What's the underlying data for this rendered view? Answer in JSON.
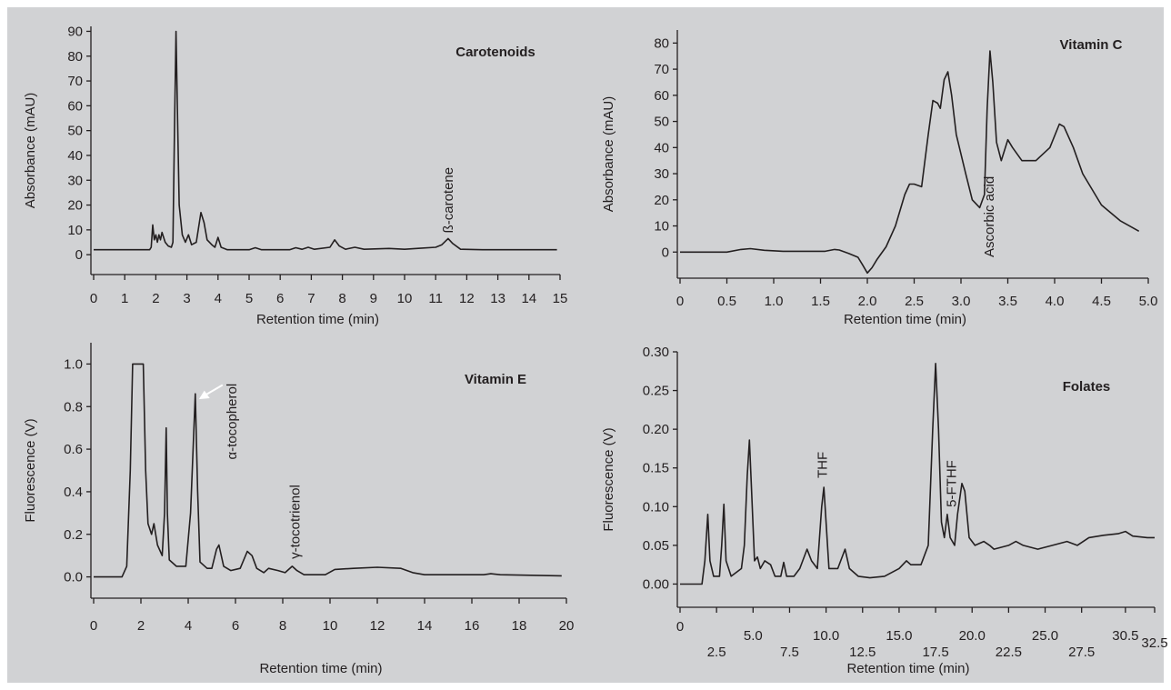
{
  "colors": {
    "background": "#d1d2d4",
    "ink": "#231f20",
    "arrow": "#ffffff"
  },
  "chart_data": [
    {
      "type": "line",
      "title": "Carotenoids",
      "xlabel": "Retention time (min)",
      "ylabel": "Absorbance (mAU)",
      "xlim": [
        0,
        15
      ],
      "ylim": [
        -8,
        92
      ],
      "x_ticks": [
        "0",
        "1",
        "2",
        "3",
        "4",
        "5",
        "6",
        "7",
        "8",
        "9",
        "10",
        "11",
        "12",
        "13",
        "14",
        "15"
      ],
      "y_ticks": [
        "0",
        "10",
        "20",
        "30",
        "40",
        "50",
        "60",
        "70",
        "80",
        "90"
      ],
      "annotations": [
        {
          "text": "ß-carotene",
          "x": 11.4,
          "y": 6.5,
          "rotated": true
        }
      ],
      "series": [
        {
          "points": [
            [
              0,
              2
            ],
            [
              1.8,
              2
            ],
            [
              1.85,
              3
            ],
            [
              1.9,
              12
            ],
            [
              1.95,
              6
            ],
            [
              2.0,
              8
            ],
            [
              2.05,
              5
            ],
            [
              2.1,
              8
            ],
            [
              2.15,
              6
            ],
            [
              2.2,
              9
            ],
            [
              2.3,
              5
            ],
            [
              2.4,
              3.5
            ],
            [
              2.5,
              3
            ],
            [
              2.55,
              5
            ],
            [
              2.6,
              50
            ],
            [
              2.65,
              90
            ],
            [
              2.7,
              55
            ],
            [
              2.75,
              20
            ],
            [
              2.85,
              8
            ],
            [
              2.95,
              5
            ],
            [
              3.05,
              8
            ],
            [
              3.15,
              4
            ],
            [
              3.3,
              5
            ],
            [
              3.45,
              17
            ],
            [
              3.55,
              13
            ],
            [
              3.65,
              6
            ],
            [
              3.8,
              4
            ],
            [
              3.9,
              3
            ],
            [
              4.0,
              7
            ],
            [
              4.1,
              3
            ],
            [
              4.3,
              2
            ],
            [
              5.0,
              2
            ],
            [
              5.2,
              2.8
            ],
            [
              5.4,
              2
            ],
            [
              6.3,
              2
            ],
            [
              6.5,
              2.8
            ],
            [
              6.7,
              2.2
            ],
            [
              6.9,
              3
            ],
            [
              7.1,
              2.2
            ],
            [
              7.6,
              3
            ],
            [
              7.75,
              6
            ],
            [
              7.9,
              3.5
            ],
            [
              8.1,
              2.2
            ],
            [
              8.4,
              3
            ],
            [
              8.7,
              2.2
            ],
            [
              9.5,
              2.5
            ],
            [
              10.0,
              2.2
            ],
            [
              10.5,
              2.6
            ],
            [
              11.0,
              3
            ],
            [
              11.2,
              4
            ],
            [
              11.4,
              6.5
            ],
            [
              11.55,
              4.5
            ],
            [
              11.8,
              2.2
            ],
            [
              12.5,
              2
            ],
            [
              14.9,
              2
            ]
          ]
        }
      ]
    },
    {
      "type": "line",
      "title": "Vitamin C",
      "xlabel": "Retention time (min)",
      "ylabel": "Absorbance (mAU)",
      "xlim": [
        0,
        5
      ],
      "ylim": [
        -10,
        85
      ],
      "x_ticks": [
        "0",
        "0.5",
        "1.0",
        "1.5",
        "2.0",
        "2.5",
        "3.0",
        "3.5",
        "4.0",
        "4.5",
        "5.0"
      ],
      "y_ticks": [
        "0",
        "10",
        "20",
        "30",
        "40",
        "50",
        "60",
        "70",
        "80"
      ],
      "annotations": [
        {
          "text": "Ascorbic acid",
          "x": 3.3,
          "y": 78,
          "rotated": true
        }
      ],
      "series": [
        {
          "points": [
            [
              0,
              0
            ],
            [
              0.5,
              0
            ],
            [
              0.65,
              1
            ],
            [
              0.75,
              1.3
            ],
            [
              0.9,
              0.7
            ],
            [
              1.1,
              0.3
            ],
            [
              1.55,
              0.3
            ],
            [
              1.65,
              1
            ],
            [
              1.7,
              0.8
            ],
            [
              1.8,
              -0.5
            ],
            [
              1.9,
              -2
            ],
            [
              1.95,
              -5
            ],
            [
              2.0,
              -8
            ],
            [
              2.05,
              -6
            ],
            [
              2.1,
              -3
            ],
            [
              2.2,
              2
            ],
            [
              2.3,
              10
            ],
            [
              2.4,
              22
            ],
            [
              2.45,
              26
            ],
            [
              2.5,
              26
            ],
            [
              2.58,
              25
            ],
            [
              2.65,
              45
            ],
            [
              2.7,
              58
            ],
            [
              2.75,
              57
            ],
            [
              2.78,
              55
            ],
            [
              2.82,
              66
            ],
            [
              2.86,
              69
            ],
            [
              2.9,
              60
            ],
            [
              2.95,
              45
            ],
            [
              3.05,
              30
            ],
            [
              3.12,
              20
            ],
            [
              3.2,
              17
            ],
            [
              3.25,
              22
            ],
            [
              3.28,
              55
            ],
            [
              3.31,
              77
            ],
            [
              3.34,
              65
            ],
            [
              3.38,
              42
            ],
            [
              3.43,
              35
            ],
            [
              3.5,
              43
            ],
            [
              3.55,
              40
            ],
            [
              3.65,
              35
            ],
            [
              3.8,
              35
            ],
            [
              3.95,
              40
            ],
            [
              4.05,
              49
            ],
            [
              4.1,
              48
            ],
            [
              4.2,
              40
            ],
            [
              4.3,
              30
            ],
            [
              4.5,
              18
            ],
            [
              4.7,
              12
            ],
            [
              4.9,
              8
            ]
          ]
        }
      ]
    },
    {
      "type": "line",
      "title": "Vitamin E",
      "xlabel": "Retention time (min)",
      "ylabel": "Fluorescence (V)",
      "xlim": [
        0,
        20
      ],
      "ylim": [
        -0.1,
        1.1
      ],
      "x_ticks": [
        "0",
        "2",
        "4",
        "6",
        "8",
        "10",
        "12",
        "14",
        "16",
        "18",
        "20"
      ],
      "y_ticks": [
        "0.0",
        "0.2",
        "0.4",
        "0.6",
        "0.8",
        "1.0"
      ],
      "annotations": [
        {
          "text": "α-tocopherol",
          "x": 4.3,
          "y": 0.85,
          "rotated": true
        },
        {
          "text": "γ-tocotrienol",
          "x": 8.4,
          "y": 0.05,
          "rotated": true
        }
      ],
      "series": [
        {
          "points": [
            [
              0,
              0
            ],
            [
              1.2,
              0
            ],
            [
              1.4,
              0.05
            ],
            [
              1.55,
              0.5
            ],
            [
              1.65,
              1.0
            ],
            [
              2.1,
              1.0
            ],
            [
              2.2,
              0.5
            ],
            [
              2.3,
              0.25
            ],
            [
              2.45,
              0.2
            ],
            [
              2.55,
              0.25
            ],
            [
              2.7,
              0.15
            ],
            [
              2.9,
              0.1
            ],
            [
              3.0,
              0.3
            ],
            [
              3.07,
              0.7
            ],
            [
              3.12,
              0.3
            ],
            [
              3.2,
              0.08
            ],
            [
              3.5,
              0.05
            ],
            [
              3.9,
              0.05
            ],
            [
              4.1,
              0.3
            ],
            [
              4.3,
              0.86
            ],
            [
              4.4,
              0.4
            ],
            [
              4.5,
              0.07
            ],
            [
              4.8,
              0.04
            ],
            [
              5.0,
              0.04
            ],
            [
              5.2,
              0.13
            ],
            [
              5.3,
              0.15
            ],
            [
              5.5,
              0.05
            ],
            [
              5.8,
              0.03
            ],
            [
              6.2,
              0.04
            ],
            [
              6.5,
              0.12
            ],
            [
              6.7,
              0.1
            ],
            [
              6.9,
              0.04
            ],
            [
              7.2,
              0.02
            ],
            [
              7.4,
              0.04
            ],
            [
              7.8,
              0.03
            ],
            [
              8.1,
              0.02
            ],
            [
              8.4,
              0.05
            ],
            [
              8.6,
              0.03
            ],
            [
              8.9,
              0.01
            ],
            [
              9.8,
              0.01
            ],
            [
              10.2,
              0.035
            ],
            [
              11,
              0.04
            ],
            [
              12,
              0.045
            ],
            [
              13,
              0.04
            ],
            [
              13.5,
              0.02
            ],
            [
              14,
              0.01
            ],
            [
              15,
              0.01
            ],
            [
              16.5,
              0.01
            ],
            [
              16.8,
              0.015
            ],
            [
              17.2,
              0.01
            ],
            [
              19.8,
              0.005
            ]
          ]
        }
      ]
    },
    {
      "type": "line",
      "title": "Folates",
      "xlabel": "Retention time (min)",
      "ylabel": "Fluorescence (V)",
      "xlim": [
        0,
        32.5
      ],
      "ylim": [
        -0.03,
        0.3
      ],
      "x_ticks": [
        "0",
        "2.5",
        "5.0",
        "7.5",
        "10.0",
        "12.5",
        "15.0",
        "17.5",
        "20.0",
        "22.5",
        "25.0",
        "27.5",
        "30.5",
        "32.5"
      ],
      "y_ticks": [
        "0.00",
        "0.05",
        "0.10",
        "0.15",
        "0.20",
        "0.25",
        "0.30"
      ],
      "annotations": [
        {
          "text": "THF",
          "x": 9.8,
          "y": 0.125,
          "rotated": true
        },
        {
          "text": "5-FTHF",
          "x": 18.6,
          "y": 0.09,
          "rotated": true
        }
      ],
      "series": [
        {
          "points": [
            [
              0,
              0
            ],
            [
              1.5,
              0
            ],
            [
              1.7,
              0.03
            ],
            [
              1.9,
              0.09
            ],
            [
              2.05,
              0.03
            ],
            [
              2.3,
              0.01
            ],
            [
              2.7,
              0.01
            ],
            [
              2.85,
              0.05
            ],
            [
              3.0,
              0.103
            ],
            [
              3.15,
              0.03
            ],
            [
              3.5,
              0.01
            ],
            [
              4.2,
              0.02
            ],
            [
              4.4,
              0.05
            ],
            [
              4.6,
              0.14
            ],
            [
              4.75,
              0.186
            ],
            [
              4.9,
              0.12
            ],
            [
              5.1,
              0.03
            ],
            [
              5.3,
              0.035
            ],
            [
              5.5,
              0.02
            ],
            [
              5.8,
              0.03
            ],
            [
              6.2,
              0.025
            ],
            [
              6.5,
              0.01
            ],
            [
              6.9,
              0.01
            ],
            [
              7.1,
              0.028
            ],
            [
              7.3,
              0.01
            ],
            [
              7.8,
              0.01
            ],
            [
              8.2,
              0.02
            ],
            [
              8.7,
              0.045
            ],
            [
              9.0,
              0.03
            ],
            [
              9.4,
              0.02
            ],
            [
              9.7,
              0.1
            ],
            [
              9.85,
              0.125
            ],
            [
              10.0,
              0.08
            ],
            [
              10.2,
              0.02
            ],
            [
              10.8,
              0.02
            ],
            [
              11.3,
              0.045
            ],
            [
              11.6,
              0.02
            ],
            [
              12.2,
              0.01
            ],
            [
              13,
              0.008
            ],
            [
              14,
              0.01
            ],
            [
              15,
              0.02
            ],
            [
              15.5,
              0.03
            ],
            [
              15.8,
              0.025
            ],
            [
              16.5,
              0.025
            ],
            [
              17.0,
              0.05
            ],
            [
              17.3,
              0.2
            ],
            [
              17.5,
              0.285
            ],
            [
              17.7,
              0.2
            ],
            [
              17.9,
              0.08
            ],
            [
              18.1,
              0.06
            ],
            [
              18.3,
              0.09
            ],
            [
              18.5,
              0.06
            ],
            [
              18.8,
              0.05
            ],
            [
              19.0,
              0.09
            ],
            [
              19.3,
              0.13
            ],
            [
              19.5,
              0.12
            ],
            [
              19.8,
              0.06
            ],
            [
              20.2,
              0.05
            ],
            [
              20.8,
              0.055
            ],
            [
              21.2,
              0.05
            ],
            [
              21.5,
              0.045
            ],
            [
              22.5,
              0.05
            ],
            [
              23,
              0.055
            ],
            [
              23.5,
              0.05
            ],
            [
              24.5,
              0.045
            ],
            [
              25.5,
              0.05
            ],
            [
              26.5,
              0.055
            ],
            [
              27.2,
              0.05
            ],
            [
              28,
              0.06
            ],
            [
              29,
              0.063
            ],
            [
              30,
              0.065
            ],
            [
              30.5,
              0.068
            ],
            [
              31,
              0.062
            ],
            [
              32,
              0.06
            ],
            [
              32.5,
              0.06
            ]
          ]
        }
      ]
    }
  ]
}
